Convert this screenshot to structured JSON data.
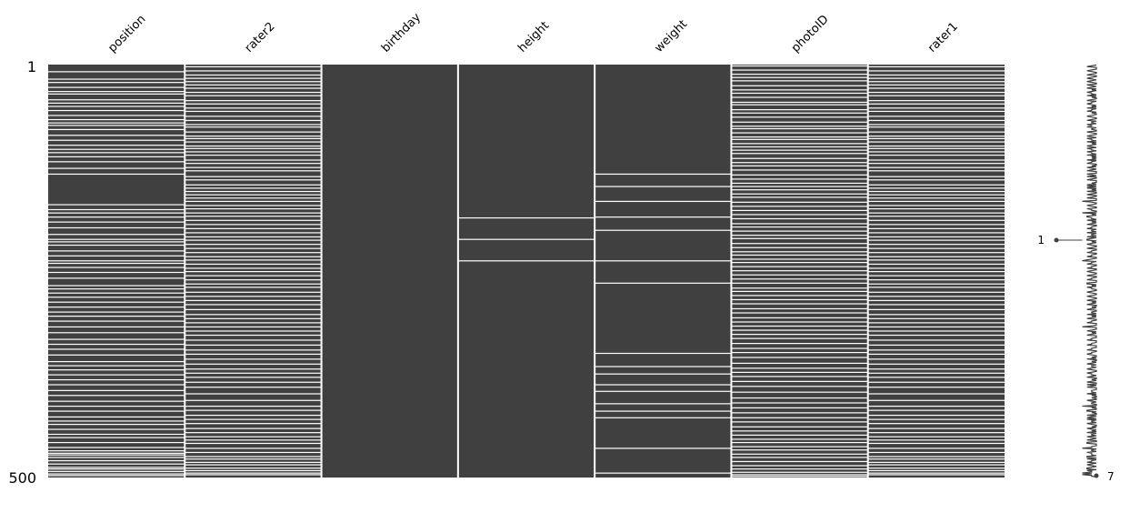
{
  "chart_data": {
    "type": "heatmap",
    "subtype": "missingness-matrix",
    "columns": [
      "position",
      "rater2",
      "birthday",
      "height",
      "weight",
      "photoID",
      "rater1"
    ],
    "row_count": 500,
    "row_axis_labels": {
      "first": "1",
      "last": "500"
    },
    "sparkline_labels": {
      "min": "1",
      "max": "7"
    },
    "colors": {
      "present": "#404040",
      "missing": "#ffffff",
      "background": "#ffffff"
    },
    "missing_rows": {
      "position": [
        9,
        18,
        22,
        28,
        33,
        36,
        43,
        47,
        51,
        56,
        62,
        67,
        71,
        74,
        79,
        86,
        92,
        98,
        103,
        107,
        112,
        118,
        126,
        133,
        170,
        176,
        180,
        185,
        191,
        198,
        206,
        212,
        215,
        219,
        226,
        232,
        238,
        241,
        246,
        252,
        259,
        268,
        272,
        277,
        282,
        288,
        294,
        300,
        305,
        311,
        318,
        325,
        333,
        339,
        345,
        352,
        360,
        365,
        370,
        376,
        382,
        388,
        395,
        401,
        408,
        414,
        420,
        427,
        432,
        436,
        442,
        448,
        452,
        458,
        464,
        468,
        471,
        473,
        476,
        480,
        484,
        488,
        490,
        493,
        496,
        498
      ],
      "rater2": [
        3,
        8,
        13,
        17,
        21,
        25,
        29,
        34,
        38,
        44,
        48,
        53,
        57,
        63,
        68,
        73,
        76,
        82,
        87,
        90,
        94,
        99,
        102,
        106,
        110,
        116,
        120,
        125,
        129,
        136,
        140,
        146,
        150,
        154,
        158,
        162,
        166,
        171,
        175,
        180,
        184,
        189,
        194,
        199,
        204,
        209,
        213,
        218,
        223,
        228,
        233,
        237,
        242,
        247,
        251,
        256,
        261,
        266,
        270,
        276,
        281,
        286,
        291,
        297,
        303,
        308,
        313,
        318,
        323,
        328,
        334,
        340,
        346,
        351,
        357,
        363,
        369,
        374,
        379,
        385,
        391,
        399,
        407,
        414,
        419,
        425,
        430,
        435,
        441,
        446,
        451,
        455,
        459,
        465,
        470,
        475,
        478,
        482,
        485,
        489,
        492,
        495,
        497
      ],
      "birthday": [],
      "height": [
        186,
        212,
        238
      ],
      "weight": [
        133,
        148,
        166,
        185,
        201,
        238,
        265,
        350,
        366,
        375,
        388,
        396,
        411,
        420,
        428,
        465,
        495
      ],
      "photoID": [
        2,
        7,
        12,
        16,
        20,
        26,
        31,
        35,
        40,
        46,
        49,
        55,
        59,
        64,
        70,
        75,
        78,
        83,
        88,
        91,
        96,
        100,
        104,
        108,
        114,
        119,
        123,
        128,
        134,
        139,
        144,
        148,
        152,
        157,
        161,
        167,
        172,
        177,
        182,
        187,
        193,
        197,
        202,
        207,
        211,
        217,
        222,
        227,
        231,
        236,
        240,
        245,
        250,
        255,
        260,
        265,
        271,
        275,
        280,
        285,
        290,
        296,
        301,
        307,
        312,
        317,
        322,
        327,
        332,
        338,
        344,
        349,
        355,
        362,
        368,
        373,
        378,
        384,
        390,
        397,
        404,
        410,
        416,
        422,
        428,
        433,
        439,
        444,
        449,
        454,
        458,
        463,
        467,
        472,
        476,
        481,
        486,
        490,
        494,
        497,
        499
      ],
      "rater1": [
        3,
        8,
        13,
        17,
        21,
        25,
        29,
        34,
        38,
        44,
        48,
        53,
        57,
        63,
        68,
        73,
        76,
        82,
        87,
        90,
        94,
        99,
        102,
        106,
        110,
        116,
        120,
        125,
        129,
        136,
        140,
        146,
        150,
        154,
        158,
        162,
        166,
        171,
        175,
        180,
        184,
        189,
        194,
        199,
        204,
        209,
        213,
        218,
        223,
        228,
        233,
        237,
        242,
        247,
        251,
        256,
        261,
        266,
        270,
        276,
        281,
        286,
        291,
        297,
        303,
        308,
        313,
        318,
        323,
        328,
        334,
        340,
        346,
        351,
        357,
        363,
        369,
        374,
        379,
        385,
        391,
        399,
        407,
        414,
        419,
        425,
        430,
        435,
        441,
        446,
        451,
        455,
        459,
        465,
        470,
        475,
        478,
        482,
        485,
        489,
        492,
        495,
        497
      ]
    }
  }
}
